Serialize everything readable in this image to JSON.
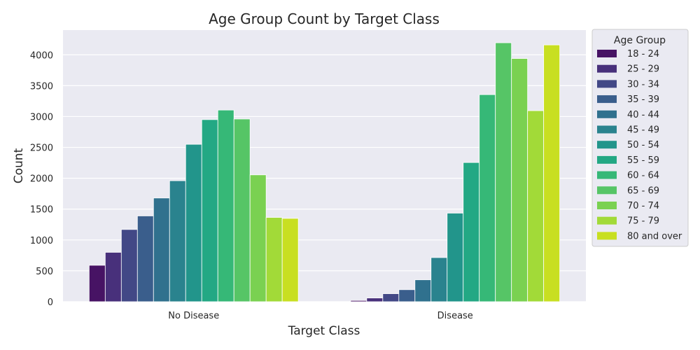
{
  "chart_data": {
    "type": "bar",
    "title": "Age Group Count by Target Class",
    "xlabel": "Target Class",
    "ylabel": "Count",
    "categories": [
      "No Disease",
      "Disease"
    ],
    "ylim": [
      0,
      4400
    ],
    "yticks": [
      0,
      500,
      1000,
      1500,
      2000,
      2500,
      3000,
      3500,
      4000
    ],
    "grid": true,
    "legend_title": "Age Group",
    "legend_position": "outside-right-top",
    "series": [
      {
        "name": "18 - 24",
        "color": "#471364",
        "values": [
          590,
          20
        ]
      },
      {
        "name": "25 - 29",
        "color": "#48307b",
        "values": [
          800,
          60
        ]
      },
      {
        "name": "30 - 34",
        "color": "#424886",
        "values": [
          1170,
          130
        ]
      },
      {
        "name": "35 - 39",
        "color": "#3a5e8c",
        "values": [
          1390,
          195
        ]
      },
      {
        "name": "40 - 44",
        "color": "#30718e",
        "values": [
          1680,
          355
        ]
      },
      {
        "name": "45 - 49",
        "color": "#2a838e",
        "values": [
          1960,
          715
        ]
      },
      {
        "name": "50 - 54",
        "color": "#22958b",
        "values": [
          2550,
          1435
        ]
      },
      {
        "name": "55 - 59",
        "color": "#23a884",
        "values": [
          2950,
          2255
        ]
      },
      {
        "name": "60 - 64",
        "color": "#36b877",
        "values": [
          3105,
          3355
        ]
      },
      {
        "name": "65 - 69",
        "color": "#56c566",
        "values": [
          2960,
          4195
        ]
      },
      {
        "name": "70 - 74",
        "color": "#7ad151",
        "values": [
          2055,
          3940
        ]
      },
      {
        "name": "75 - 79",
        "color": "#a2da38",
        "values": [
          1365,
          3095
        ]
      },
      {
        "name": "80 and over",
        "color": "#c8df21",
        "values": [
          1350,
          4160
        ]
      }
    ]
  }
}
